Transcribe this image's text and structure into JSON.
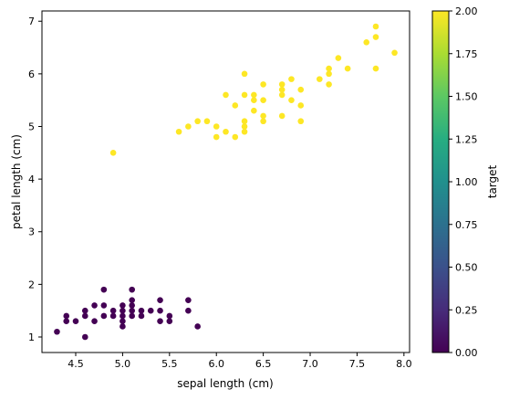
{
  "chart_data": {
    "type": "scatter",
    "title": "",
    "xlabel": "sepal length (cm)",
    "ylabel": "petal length (cm)",
    "xlim": [
      4.14,
      8.06
    ],
    "ylim": [
      0.705,
      7.195
    ],
    "xticks": [
      4.5,
      5.0,
      5.5,
      6.0,
      6.5,
      7.0,
      7.5,
      8.0
    ],
    "xtick_labels": [
      "4.5",
      "5.0",
      "5.5",
      "6.0",
      "6.5",
      "7.0",
      "7.5",
      "8.0"
    ],
    "yticks": [
      1,
      2,
      3,
      4,
      5,
      6,
      7
    ],
    "ytick_labels": [
      "1",
      "2",
      "3",
      "4",
      "5",
      "6",
      "7"
    ],
    "grid": false,
    "colorbar": {
      "label": "target",
      "colormap": "viridis",
      "range": [
        0,
        2
      ],
      "ticks": [
        0.0,
        0.25,
        0.5,
        0.75,
        1.0,
        1.25,
        1.5,
        1.75,
        2.0
      ],
      "tick_labels": [
        "0.00",
        "0.25",
        "0.50",
        "0.75",
        "1.00",
        "1.25",
        "1.50",
        "1.75",
        "2.00"
      ]
    },
    "colors": {
      "target_0": "#440154",
      "target_2": "#fde725"
    },
    "points": [
      {
        "x": 4.3,
        "y": 1.1,
        "target": 0
      },
      {
        "x": 4.4,
        "y": 1.3,
        "target": 0
      },
      {
        "x": 4.4,
        "y": 1.4,
        "target": 0
      },
      {
        "x": 4.5,
        "y": 1.3,
        "target": 0
      },
      {
        "x": 4.6,
        "y": 1.0,
        "target": 0
      },
      {
        "x": 4.6,
        "y": 1.4,
        "target": 0
      },
      {
        "x": 4.6,
        "y": 1.5,
        "target": 0
      },
      {
        "x": 4.7,
        "y": 1.3,
        "target": 0
      },
      {
        "x": 4.7,
        "y": 1.6,
        "target": 0
      },
      {
        "x": 4.8,
        "y": 1.4,
        "target": 0
      },
      {
        "x": 4.8,
        "y": 1.6,
        "target": 0
      },
      {
        "x": 4.8,
        "y": 1.9,
        "target": 0
      },
      {
        "x": 4.9,
        "y": 1.4,
        "target": 0
      },
      {
        "x": 4.9,
        "y": 1.5,
        "target": 0
      },
      {
        "x": 5.0,
        "y": 1.2,
        "target": 0
      },
      {
        "x": 5.0,
        "y": 1.3,
        "target": 0
      },
      {
        "x": 5.0,
        "y": 1.4,
        "target": 0
      },
      {
        "x": 5.0,
        "y": 1.5,
        "target": 0
      },
      {
        "x": 5.0,
        "y": 1.6,
        "target": 0
      },
      {
        "x": 5.1,
        "y": 1.4,
        "target": 0
      },
      {
        "x": 5.1,
        "y": 1.5,
        "target": 0
      },
      {
        "x": 5.1,
        "y": 1.6,
        "target": 0
      },
      {
        "x": 5.1,
        "y": 1.7,
        "target": 0
      },
      {
        "x": 5.1,
        "y": 1.9,
        "target": 0
      },
      {
        "x": 5.2,
        "y": 1.4,
        "target": 0
      },
      {
        "x": 5.2,
        "y": 1.5,
        "target": 0
      },
      {
        "x": 5.3,
        "y": 1.5,
        "target": 0
      },
      {
        "x": 5.4,
        "y": 1.3,
        "target": 0
      },
      {
        "x": 5.4,
        "y": 1.5,
        "target": 0
      },
      {
        "x": 5.4,
        "y": 1.7,
        "target": 0
      },
      {
        "x": 5.5,
        "y": 1.3,
        "target": 0
      },
      {
        "x": 5.5,
        "y": 1.4,
        "target": 0
      },
      {
        "x": 5.7,
        "y": 1.5,
        "target": 0
      },
      {
        "x": 5.7,
        "y": 1.7,
        "target": 0
      },
      {
        "x": 5.8,
        "y": 1.2,
        "target": 0
      },
      {
        "x": 4.9,
        "y": 4.5,
        "target": 2
      },
      {
        "x": 5.6,
        "y": 4.9,
        "target": 2
      },
      {
        "x": 5.7,
        "y": 5.0,
        "target": 2
      },
      {
        "x": 5.8,
        "y": 5.1,
        "target": 2
      },
      {
        "x": 5.9,
        "y": 5.1,
        "target": 2
      },
      {
        "x": 6.0,
        "y": 4.8,
        "target": 2
      },
      {
        "x": 6.0,
        "y": 5.0,
        "target": 2
      },
      {
        "x": 6.1,
        "y": 4.9,
        "target": 2
      },
      {
        "x": 6.1,
        "y": 5.6,
        "target": 2
      },
      {
        "x": 6.2,
        "y": 4.8,
        "target": 2
      },
      {
        "x": 6.2,
        "y": 5.4,
        "target": 2
      },
      {
        "x": 6.3,
        "y": 4.9,
        "target": 2
      },
      {
        "x": 6.3,
        "y": 5.0,
        "target": 2
      },
      {
        "x": 6.3,
        "y": 5.1,
        "target": 2
      },
      {
        "x": 6.3,
        "y": 5.6,
        "target": 2
      },
      {
        "x": 6.3,
        "y": 6.0,
        "target": 2
      },
      {
        "x": 6.4,
        "y": 5.3,
        "target": 2
      },
      {
        "x": 6.4,
        "y": 5.5,
        "target": 2
      },
      {
        "x": 6.4,
        "y": 5.6,
        "target": 2
      },
      {
        "x": 6.5,
        "y": 5.1,
        "target": 2
      },
      {
        "x": 6.5,
        "y": 5.2,
        "target": 2
      },
      {
        "x": 6.5,
        "y": 5.5,
        "target": 2
      },
      {
        "x": 6.5,
        "y": 5.8,
        "target": 2
      },
      {
        "x": 6.7,
        "y": 5.2,
        "target": 2
      },
      {
        "x": 6.7,
        "y": 5.6,
        "target": 2
      },
      {
        "x": 6.7,
        "y": 5.7,
        "target": 2
      },
      {
        "x": 6.7,
        "y": 5.8,
        "target": 2
      },
      {
        "x": 6.8,
        "y": 5.5,
        "target": 2
      },
      {
        "x": 6.8,
        "y": 5.9,
        "target": 2
      },
      {
        "x": 6.9,
        "y": 5.1,
        "target": 2
      },
      {
        "x": 6.9,
        "y": 5.4,
        "target": 2
      },
      {
        "x": 6.9,
        "y": 5.7,
        "target": 2
      },
      {
        "x": 7.1,
        "y": 5.9,
        "target": 2
      },
      {
        "x": 7.2,
        "y": 5.8,
        "target": 2
      },
      {
        "x": 7.2,
        "y": 6.0,
        "target": 2
      },
      {
        "x": 7.2,
        "y": 6.1,
        "target": 2
      },
      {
        "x": 7.3,
        "y": 6.3,
        "target": 2
      },
      {
        "x": 7.4,
        "y": 6.1,
        "target": 2
      },
      {
        "x": 7.6,
        "y": 6.6,
        "target": 2
      },
      {
        "x": 7.7,
        "y": 6.1,
        "target": 2
      },
      {
        "x": 7.7,
        "y": 6.7,
        "target": 2
      },
      {
        "x": 7.7,
        "y": 6.9,
        "target": 2
      },
      {
        "x": 7.9,
        "y": 6.4,
        "target": 2
      }
    ]
  }
}
